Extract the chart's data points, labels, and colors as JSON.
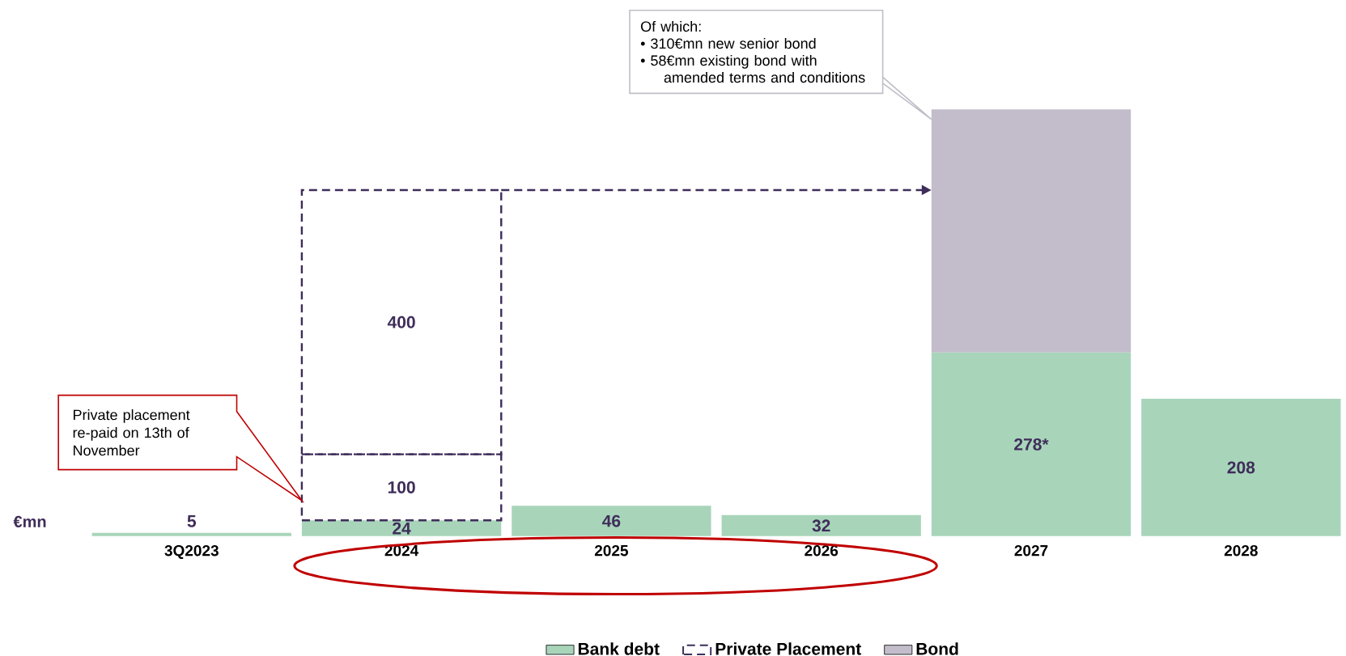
{
  "chart_data": {
    "type": "bar",
    "stacked": true,
    "ylabel": "€mn",
    "categories": [
      "3Q2023",
      "2024",
      "2025",
      "2026",
      "2027",
      "2028"
    ],
    "series": [
      {
        "name": "Bank debt",
        "color": "#a8d5ba",
        "values": [
          5,
          24,
          46,
          32,
          278,
          208
        ],
        "value_labels": [
          "5",
          "24",
          "46",
          "32",
          "278*",
          "208"
        ]
      },
      {
        "name": "Private Placement",
        "color": "#3f2d5a",
        "line_style": "dashed",
        "values": [
          null,
          100,
          null,
          null,
          null,
          null
        ],
        "value_labels": [
          null,
          "100",
          null,
          null,
          null,
          null
        ]
      },
      {
        "color": "#3f2d5a",
        "line_style": "dashed",
        "values": [
          null,
          400,
          null,
          null,
          null,
          null
        ],
        "value_labels": [
          null,
          "400",
          null,
          null,
          null,
          null
        ]
      },
      {
        "name": "Bond",
        "color": "#c3bdcb",
        "values": [
          null,
          null,
          null,
          null,
          368,
          null
        ]
      }
    ],
    "legend": "bottom",
    "annotations": [
      "Private placement re-paid on 13th of November",
      "Of which:",
      "•   310€mn new senior bond",
      "•   58€mn existing bond with amended terms and conditions"
    ]
  }
}
